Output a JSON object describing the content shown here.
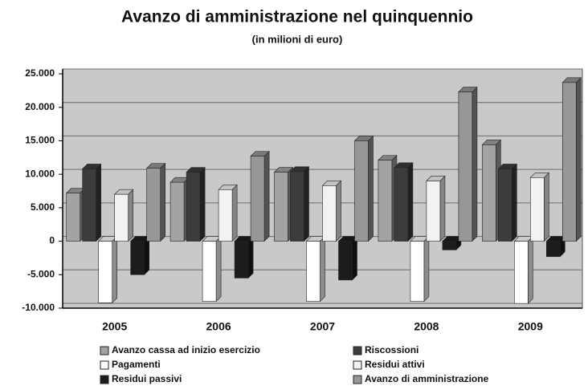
{
  "chart_data": {
    "type": "bar",
    "title": "Avanzo di amministrazione nel quinquennio",
    "subtitle": "(in milioni di euro)",
    "categories": [
      "2005",
      "2006",
      "2007",
      "2008",
      "2009"
    ],
    "series": [
      {
        "name": "Avanzo cassa ad inizio esercizio",
        "color": "#a3a3a3",
        "values": [
          7200,
          8800,
          10300,
          12100,
          14400
        ]
      },
      {
        "name": "Riscossioni",
        "color": "#3c3c3c",
        "values": [
          10800,
          10300,
          10400,
          11000,
          10800
        ]
      },
      {
        "name": "Pagamenti",
        "color": "#ffffff",
        "values": [
          -9200,
          -9000,
          -9000,
          -9000,
          -9300
        ]
      },
      {
        "name": "Residui attivi",
        "color": "#f2f2f2",
        "values": [
          7000,
          7700,
          8300,
          9000,
          9500
        ]
      },
      {
        "name": "Residui passivi",
        "color": "#1c1c1c",
        "values": [
          -5000,
          -5500,
          -5800,
          -1300,
          -2300
        ]
      },
      {
        "name": "Avanzo di amministrazione",
        "color": "#979797",
        "values": [
          10900,
          12700,
          15000,
          22300,
          23700
        ]
      }
    ],
    "ylim": [
      -10000,
      25000
    ],
    "yticks": [
      {
        "value": -10000,
        "label": "-10.000"
      },
      {
        "value": -5000,
        "label": "-5.000"
      },
      0,
      {
        "value": 5000,
        "label": "5.000"
      },
      {
        "value": 10000,
        "label": "10.000"
      },
      {
        "value": 15000,
        "label": "15.000"
      },
      {
        "value": 20000,
        "label": "20.000"
      },
      {
        "value": 25000,
        "label": "25.000"
      }
    ],
    "grid": true,
    "legend": "bottom"
  }
}
